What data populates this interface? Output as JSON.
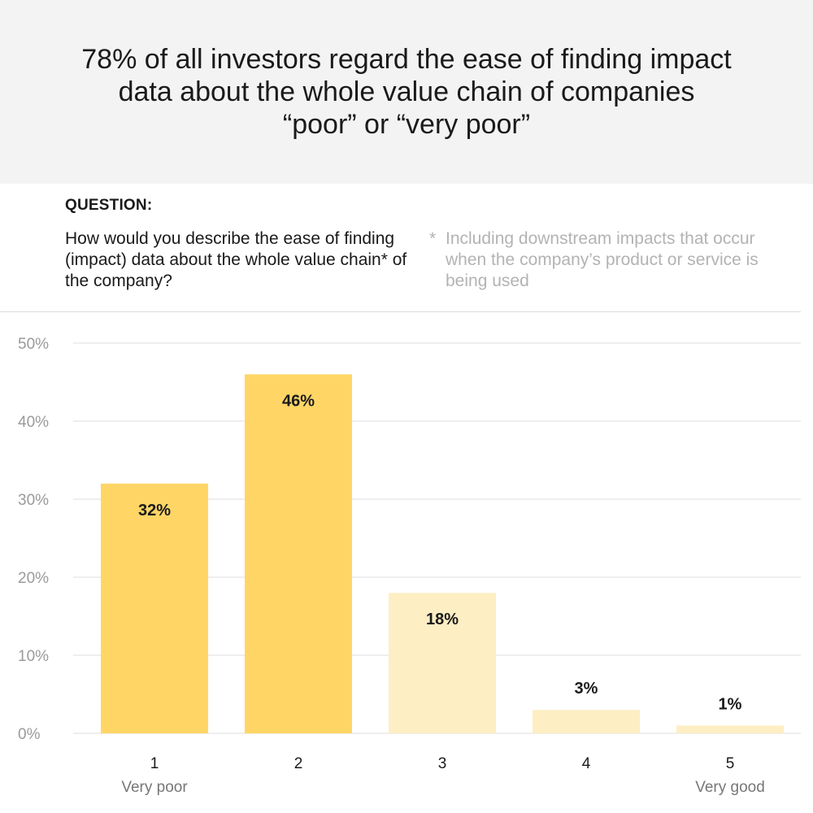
{
  "headline": "78% of all investors regard the ease of finding impact data about the whole value chain of companies “poor” or “very poor”",
  "question": {
    "label": "QUESTION:",
    "text": "How would you describe the ease of finding (impact) data about the whole value chain* of the company?",
    "footnote_marker": "*",
    "footnote": "Including downstream impacts that occur when the company’s product or service is being used"
  },
  "colors": {
    "highlight": "#ffd666",
    "muted": "#fdeec4",
    "grid": "#dcdcdc",
    "header_bg": "#f3f3f3"
  },
  "chart_data": {
    "type": "bar",
    "categories": [
      "1",
      "2",
      "3",
      "4",
      "5"
    ],
    "category_sublabels": [
      "Very poor",
      "",
      "",
      "",
      "Very good"
    ],
    "values": [
      32,
      46,
      18,
      3,
      1
    ],
    "value_labels": [
      "32%",
      "46%",
      "18%",
      "3%",
      "1%"
    ],
    "highlighted": [
      true,
      true,
      false,
      false,
      false
    ],
    "ylim": [
      0,
      50
    ],
    "yticks": [
      0,
      10,
      20,
      30,
      40,
      50
    ],
    "ytick_labels": [
      "0%",
      "10%",
      "20%",
      "30%",
      "40%",
      "50%"
    ],
    "grid": true,
    "xlabel": "",
    "ylabel": ""
  }
}
